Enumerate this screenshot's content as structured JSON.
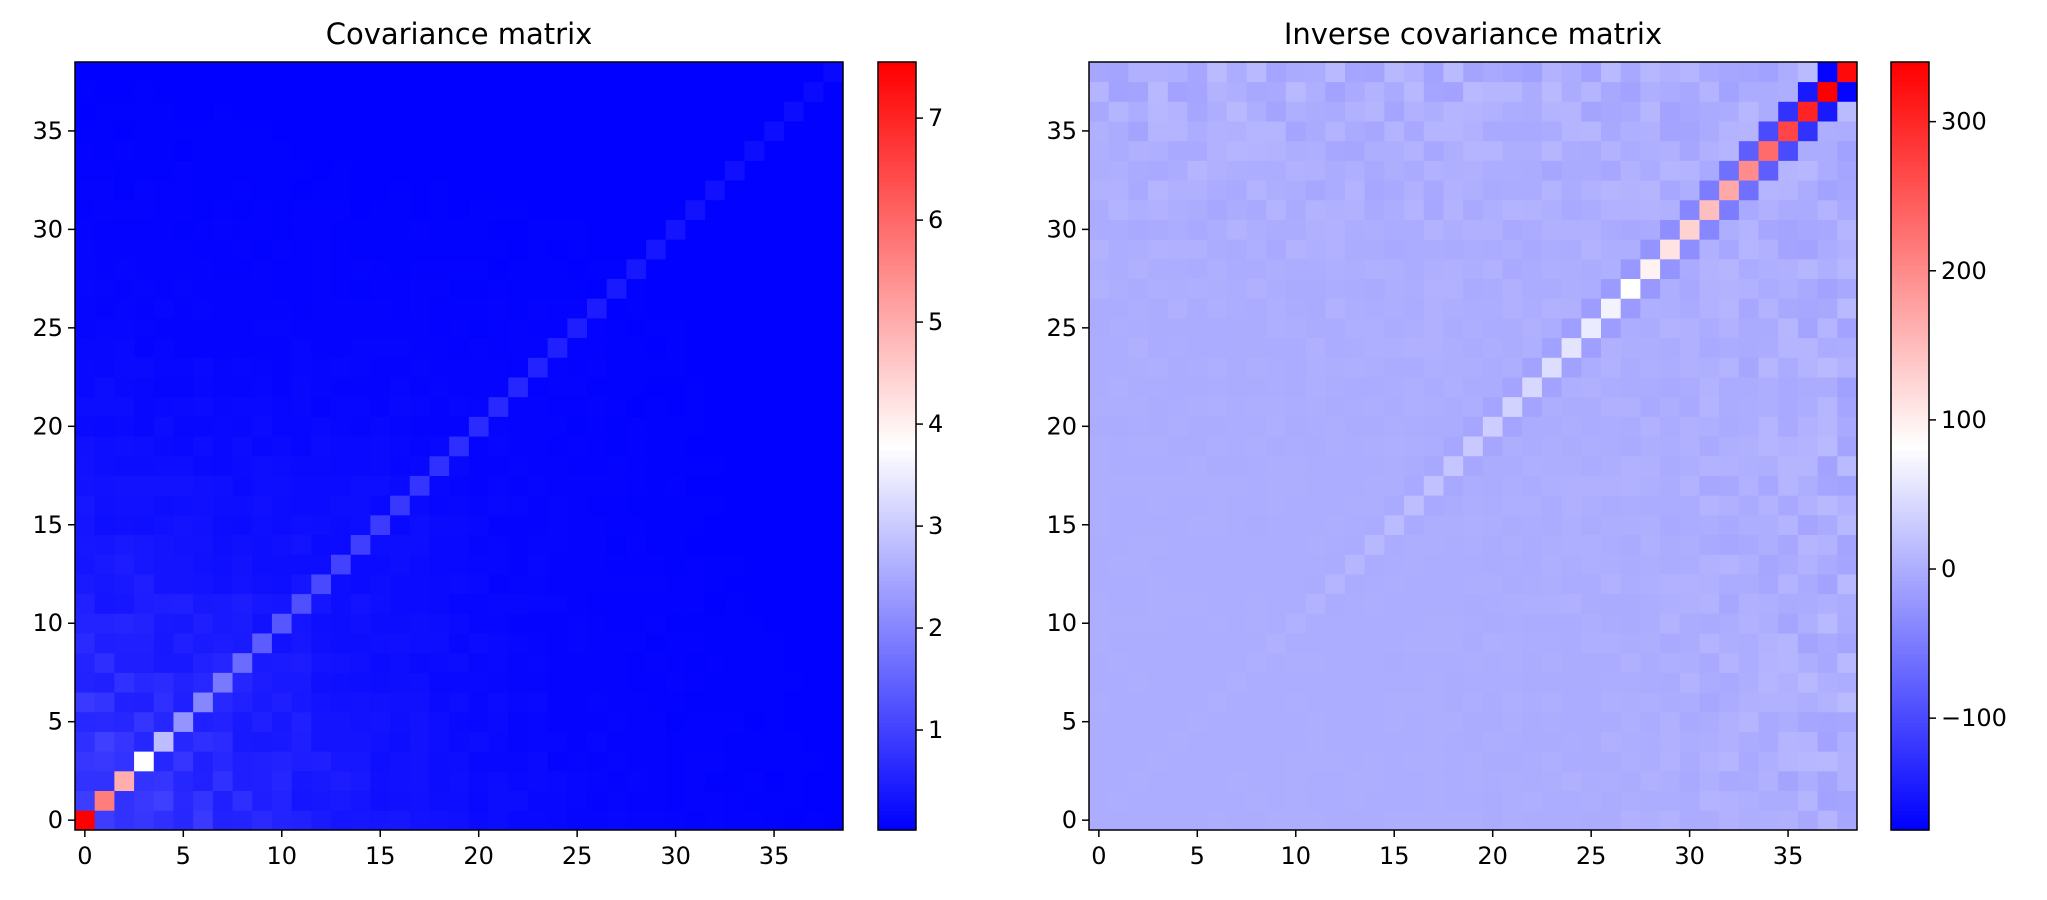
{
  "figure": {
    "background": "#ffffff"
  },
  "colormap": {
    "name": "bwr",
    "stops": [
      "#0000ff",
      "#ffffff",
      "#ff0000"
    ]
  },
  "chart_data": [
    {
      "type": "heatmap",
      "title": "Covariance matrix",
      "xlabel": "",
      "ylabel": "",
      "size": 39,
      "origin": "lower",
      "xlim": [
        -0.5,
        38.5
      ],
      "ylim": [
        -0.5,
        38.5
      ],
      "xticks": [
        0,
        5,
        10,
        15,
        20,
        25,
        30,
        35
      ],
      "xtick_labels": [
        "0",
        "5",
        "10",
        "15",
        "20",
        "25",
        "30",
        "35"
      ],
      "yticks": [
        0,
        5,
        10,
        15,
        20,
        25,
        30,
        35
      ],
      "ytick_labels": [
        "0",
        "5",
        "10",
        "15",
        "20",
        "25",
        "30",
        "35"
      ],
      "colorbar": {
        "vmin": 0.02,
        "vmax": 7.55,
        "ticks": [
          1,
          2,
          3,
          4,
          5,
          6,
          7
        ],
        "tick_labels": [
          "1",
          "2",
          "3",
          "4",
          "5",
          "6",
          "7"
        ]
      },
      "diagonal": [
        7.55,
        5.7,
        5.0,
        3.8,
        2.8,
        2.2,
        2.0,
        1.8,
        1.6,
        1.4,
        1.3,
        1.2,
        1.1,
        1.0,
        0.95,
        0.9,
        0.85,
        0.8,
        0.75,
        0.7,
        0.66,
        0.62,
        0.58,
        0.54,
        0.5,
        0.46,
        0.43,
        0.4,
        0.37,
        0.34,
        0.31,
        0.29,
        0.27,
        0.25,
        0.23,
        0.21,
        0.19,
        0.17,
        0.15
      ],
      "off_diagonal_model": {
        "description": "off-diagonal cells decay with distance from the diagonal and from the low-index corner",
        "amplitude": 1.2,
        "index_decay": 0.12,
        "distance_decay": 0.09,
        "floor": 0.04
      }
    },
    {
      "type": "heatmap",
      "title": "Inverse covariance matrix",
      "xlabel": "",
      "ylabel": "",
      "size": 39,
      "origin": "lower",
      "xlim": [
        -0.5,
        38.5
      ],
      "ylim": [
        -0.5,
        38.5
      ],
      "xticks": [
        0,
        5,
        10,
        15,
        20,
        25,
        30,
        35
      ],
      "xtick_labels": [
        "0",
        "5",
        "10",
        "15",
        "20",
        "25",
        "30",
        "35"
      ],
      "yticks": [
        0,
        5,
        10,
        15,
        20,
        25,
        30,
        35
      ],
      "ytick_labels": [
        "0",
        "5",
        "10",
        "15",
        "20",
        "25",
        "30",
        "35"
      ],
      "colorbar": {
        "vmin": -175,
        "vmax": 340,
        "ticks": [
          -100,
          0,
          100,
          200,
          300
        ],
        "tick_labels": [
          "−100",
          "0",
          "100",
          "200",
          "300"
        ]
      },
      "diagonal": [
        0.2,
        0.3,
        0.4,
        0.6,
        0.8,
        1,
        1.3,
        1.7,
        2.2,
        3,
        4,
        5,
        7,
        9,
        11,
        14,
        17,
        20,
        24,
        28,
        32,
        37,
        42,
        48,
        55,
        62,
        70,
        82,
        96,
        112,
        128,
        148,
        170,
        200,
        232,
        270,
        305,
        340,
        330
      ],
      "neighbor_values": {
        "description": "first off-diagonal (i, i+1) values; symmetric",
        "values": [
          0,
          0,
          0,
          0,
          0,
          0,
          0,
          0,
          0,
          -0.5,
          -0.8,
          -1,
          -1.5,
          -2,
          -2.5,
          -3,
          -4,
          -5,
          -6,
          -7,
          -8,
          -9,
          -10,
          -12,
          -14,
          -16,
          -18,
          -22,
          -26,
          -32,
          -40,
          -50,
          -62,
          -80,
          -100,
          -125,
          -150,
          -175
        ]
      },
      "off_diagonal_model": {
        "description": "small mottled values away from the diagonal, growing toward the high-index corner",
        "amplitude": 28,
        "index_growth": 0.12
      }
    }
  ]
}
